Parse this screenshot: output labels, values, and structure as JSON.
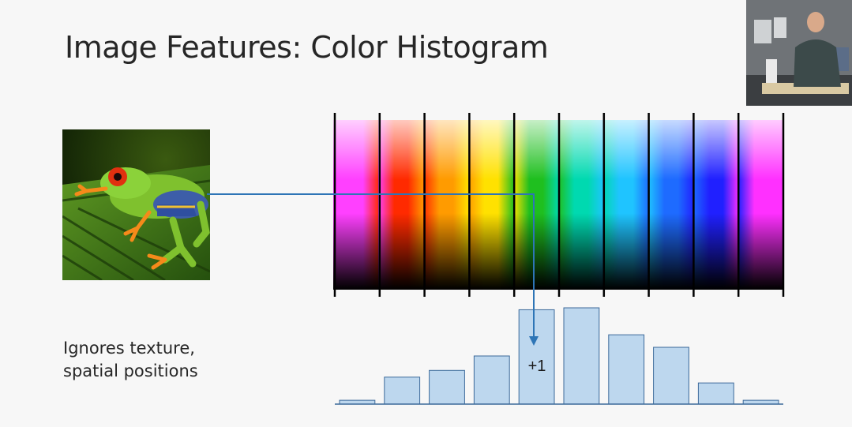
{
  "slide": {
    "title": "Image Features: Color Histogram",
    "caption_lines": [
      "Ignores texture,",
      "spatial positions"
    ],
    "increment_label": "+1"
  },
  "spectrum": {
    "hues": [
      "#ff40ff",
      "#ff2a00",
      "#ff9b00",
      "#ffe100",
      "#1fbf1f",
      "#00d9b0",
      "#1fc4ff",
      "#1e6bff",
      "#2020ff",
      "#ff30ff"
    ]
  },
  "histogram": {
    "values": [
      0.04,
      0.28,
      0.35,
      0.5,
      0.98,
      1.0,
      0.72,
      0.59,
      0.22,
      0.04
    ],
    "bar_color": "#bdd7ee",
    "bar_border": "#3c6a9a"
  },
  "arrow_color": "#2e75b6",
  "icons": {
    "frog_photo": "red-eyed-tree-frog-image",
    "speaker_video": "lecturer-webcam-thumbnail"
  }
}
